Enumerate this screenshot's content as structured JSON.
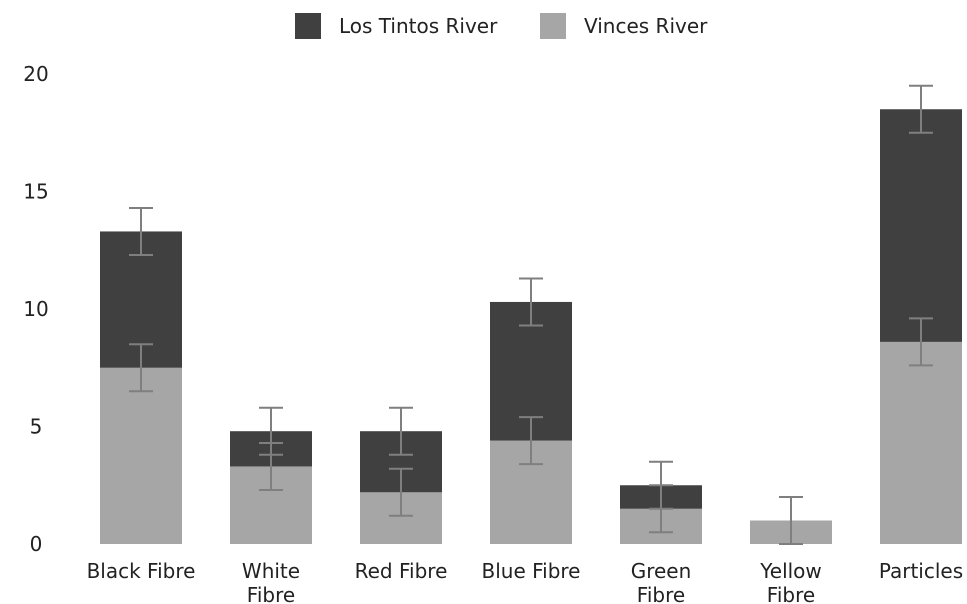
{
  "chart_data": {
    "type": "bar",
    "stacked": true,
    "categories": [
      "Black Fibre",
      "White Fibre",
      "Red Fibre",
      "Blue Fibre",
      "Green Fibre",
      "Yellow Fibre",
      "Particles"
    ],
    "category_lines": [
      [
        "Black Fibre"
      ],
      [
        "White",
        "Fibre"
      ],
      [
        "Red Fibre"
      ],
      [
        "Blue Fibre"
      ],
      [
        "Green",
        "Fibre"
      ],
      [
        "Yellow",
        "Fibre"
      ],
      [
        "Particles"
      ]
    ],
    "series": [
      {
        "name": "Vinces River",
        "color": "#a6a6a6",
        "values": [
          7.5,
          3.3,
          2.2,
          4.4,
          1.5,
          1.0,
          8.6
        ],
        "error": [
          1.0,
          1.0,
          1.0,
          1.0,
          1.0,
          1.0,
          1.0
        ]
      },
      {
        "name": "Los Tintos River",
        "color": "#404040",
        "values": [
          5.8,
          1.5,
          2.6,
          5.9,
          1.0,
          0.0,
          9.9
        ],
        "error": [
          1.0,
          1.0,
          1.0,
          1.0,
          1.0,
          0.0,
          1.0
        ]
      }
    ],
    "legend": [
      {
        "name": "Los Tintos River",
        "color": "#404040"
      },
      {
        "name": "Vinces River",
        "color": "#a6a6a6"
      }
    ],
    "legend_position": "top",
    "y_ticks": [
      "0",
      "5",
      "10",
      "15",
      "20"
    ],
    "ylim": [
      0,
      20
    ],
    "grid": false,
    "error_bar_color": "#7f7f7f",
    "title": "",
    "xlabel": "",
    "ylabel": ""
  }
}
